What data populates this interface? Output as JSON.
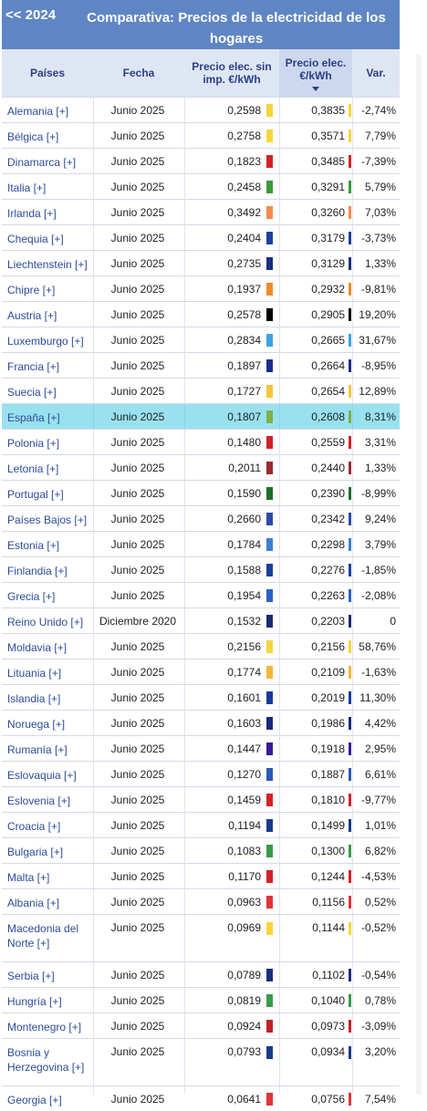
{
  "header": {
    "back_label": "<< 2024",
    "title": "Comparativa: Precios de la electricidad de los hogares"
  },
  "columns": {
    "country": "Países",
    "date": "Fecha",
    "price_no_tax": "Precio elec. sin imp. €/kWh",
    "price": "Precio elec. €/kWh",
    "var": "Var."
  },
  "rows": [
    {
      "country": "Alemania [+]",
      "date": "Junio 2025",
      "p1": "0,2598",
      "p2": "0,3835",
      "var": "-2,74%",
      "color": "#f6d53d"
    },
    {
      "country": "Bélgica [+]",
      "date": "Junio 2025",
      "p1": "0,2758",
      "p2": "0,3571",
      "var": "7,79%",
      "color": "#f6d53d"
    },
    {
      "country": "Dinamarca [+]",
      "date": "Junio 2025",
      "p1": "0,1823",
      "p2": "0,3485",
      "var": "-7,39%",
      "color": "#d0222a"
    },
    {
      "country": "Italia [+]",
      "date": "Junio 2025",
      "p1": "0,2458",
      "p2": "0,3291",
      "var": "5,79%",
      "color": "#3a9a3c"
    },
    {
      "country": "Irlanda [+]",
      "date": "Junio 2025",
      "p1": "0,3492",
      "p2": "0,3260",
      "var": "7,03%",
      "color": "#f28c4a"
    },
    {
      "country": "Chequia [+]",
      "date": "Junio 2025",
      "p1": "0,2404",
      "p2": "0,3179",
      "var": "-3,73%",
      "color": "#1d3fa0"
    },
    {
      "country": "Liechtenstein [+]",
      "date": "Junio 2025",
      "p1": "0,2735",
      "p2": "0,3129",
      "var": "1,33%",
      "color": "#1a2f7c"
    },
    {
      "country": "Chipre [+]",
      "date": "Junio 2025",
      "p1": "0,1937",
      "p2": "0,2932",
      "var": "-9,81%",
      "color": "#f08a2a"
    },
    {
      "country": "Austria [+]",
      "date": "Junio 2025",
      "p1": "0,2578",
      "p2": "0,2905",
      "var": "19,20%",
      "color": "#000000"
    },
    {
      "country": "Luxemburgo [+]",
      "date": "Junio 2025",
      "p1": "0,2834",
      "p2": "0,2665",
      "var": "31,67%",
      "color": "#3aa3e3"
    },
    {
      "country": "Francia [+]",
      "date": "Junio 2025",
      "p1": "0,1897",
      "p2": "0,2664",
      "var": "-8,95%",
      "color": "#1a2f8a"
    },
    {
      "country": "Suecia [+]",
      "date": "Junio 2025",
      "p1": "0,1727",
      "p2": "0,2654",
      "var": "12,89%",
      "color": "#f6c63d"
    },
    {
      "country": "España [+]",
      "date": "Junio 2025",
      "p1": "0,1807",
      "p2": "0,2608",
      "var": "8,31%",
      "color": "#7fb04a"
    },
    {
      "country": "Polonia [+]",
      "date": "Junio 2025",
      "p1": "0,1480",
      "p2": "0,2559",
      "var": "3,31%",
      "color": "#d0222a"
    },
    {
      "country": "Letonia [+]",
      "date": "Junio 2025",
      "p1": "0,2011",
      "p2": "0,2440",
      "var": "1,33%",
      "color": "#9b2a33"
    },
    {
      "country": "Portugal [+]",
      "date": "Junio 2025",
      "p1": "0,1590",
      "p2": "0,2390",
      "var": "-8,99%",
      "color": "#1e6e2a"
    },
    {
      "country": "Países Bajos [+]",
      "date": "Junio 2025",
      "p1": "0,2660",
      "p2": "0,2342",
      "var": "9,24%",
      "color": "#2a4aa6"
    },
    {
      "country": "Estonia [+]",
      "date": "Junio 2025",
      "p1": "0,1784",
      "p2": "0,2298",
      "var": "3,79%",
      "color": "#3c7fd0"
    },
    {
      "country": "Finlandia [+]",
      "date": "Junio 2025",
      "p1": "0,1588",
      "p2": "0,2276",
      "var": "-1,85%",
      "color": "#1a3f9a"
    },
    {
      "country": "Grecia [+]",
      "date": "Junio 2025",
      "p1": "0,1954",
      "p2": "0,2263",
      "var": "-2,08%",
      "color": "#2a63c6"
    },
    {
      "country": "Reino Unido [+]",
      "date": "Diciembre 2020",
      "p1": "0,1532",
      "p2": "0,2203",
      "var": "0",
      "color": "#1a2a6e"
    },
    {
      "country": "Moldavia [+]",
      "date": "Junio 2025",
      "p1": "0,2156",
      "p2": "0,2156",
      "var": "58,76%",
      "color": "#f6d53d"
    },
    {
      "country": "Lituania [+]",
      "date": "Junio 2025",
      "p1": "0,1774",
      "p2": "0,2109",
      "var": "-1,63%",
      "color": "#f3b73a"
    },
    {
      "country": "Islandia [+]",
      "date": "Junio 2025",
      "p1": "0,1601",
      "p2": "0,2019",
      "var": "11,30%",
      "color": "#1a3a9a"
    },
    {
      "country": "Noruega [+]",
      "date": "Junio 2025",
      "p1": "0,1603",
      "p2": "0,1986",
      "var": "4,42%",
      "color": "#1a2a7e"
    },
    {
      "country": "Rumanía [+]",
      "date": "Junio 2025",
      "p1": "0,1447",
      "p2": "0,1918",
      "var": "2,95%",
      "color": "#3a1a9a"
    },
    {
      "country": "Eslovaquia [+]",
      "date": "Junio 2025",
      "p1": "0,1270",
      "p2": "0,1887",
      "var": "6,61%",
      "color": "#2a5ab6"
    },
    {
      "country": "Eslovenia [+]",
      "date": "Junio 2025",
      "p1": "0,1459",
      "p2": "0,1810",
      "var": "-9,77%",
      "color": "#d0222a"
    },
    {
      "country": "Croacia [+]",
      "date": "Junio 2025",
      "p1": "0,1194",
      "p2": "0,1499",
      "var": "1,01%",
      "color": "#1a3a8a"
    },
    {
      "country": "Bulgaria [+]",
      "date": "Junio 2025",
      "p1": "0,1083",
      "p2": "0,1300",
      "var": "6,82%",
      "color": "#3a9a4c"
    },
    {
      "country": "Malta [+]",
      "date": "Junio 2025",
      "p1": "0,1170",
      "p2": "0,1244",
      "var": "-4,53%",
      "color": "#d0222a"
    },
    {
      "country": "Albania [+]",
      "date": "Junio 2025",
      "p1": "0,0963",
      "p2": "0,1156",
      "var": "0,52%",
      "color": "#e0343a"
    },
    {
      "country": "Macedonia del Norte [+]",
      "date": "Junio 2025",
      "p1": "0,0969",
      "p2": "0,1144",
      "var": "-0,52%",
      "color": "#f6d53d"
    },
    {
      "country": "Serbia [+]",
      "date": "Junio 2025",
      "p1": "0,0789",
      "p2": "0,1102",
      "var": "-0,54%",
      "color": "#1a2f7c"
    },
    {
      "country": "Hungría [+]",
      "date": "Junio 2025",
      "p1": "0,0819",
      "p2": "0,1040",
      "var": "0,78%",
      "color": "#3a9a4c"
    },
    {
      "country": "Montenegro [+]",
      "date": "Junio 2025",
      "p1": "0,0924",
      "p2": "0,0973",
      "var": "-3,09%",
      "color": "#c0222a"
    },
    {
      "country": "Bosnia y Herzegovina [+]",
      "date": "Junio 2025",
      "p1": "0,0793",
      "p2": "0,0934",
      "var": "3,20%",
      "color": "#1a3a8a"
    },
    {
      "country": "Georgia [+]",
      "date": "Junio 2025",
      "p1": "0,0641",
      "p2": "0,0756",
      "var": "7,54%",
      "color": "#e0343a"
    }
  ],
  "highlight_color": "#46c8e1"
}
